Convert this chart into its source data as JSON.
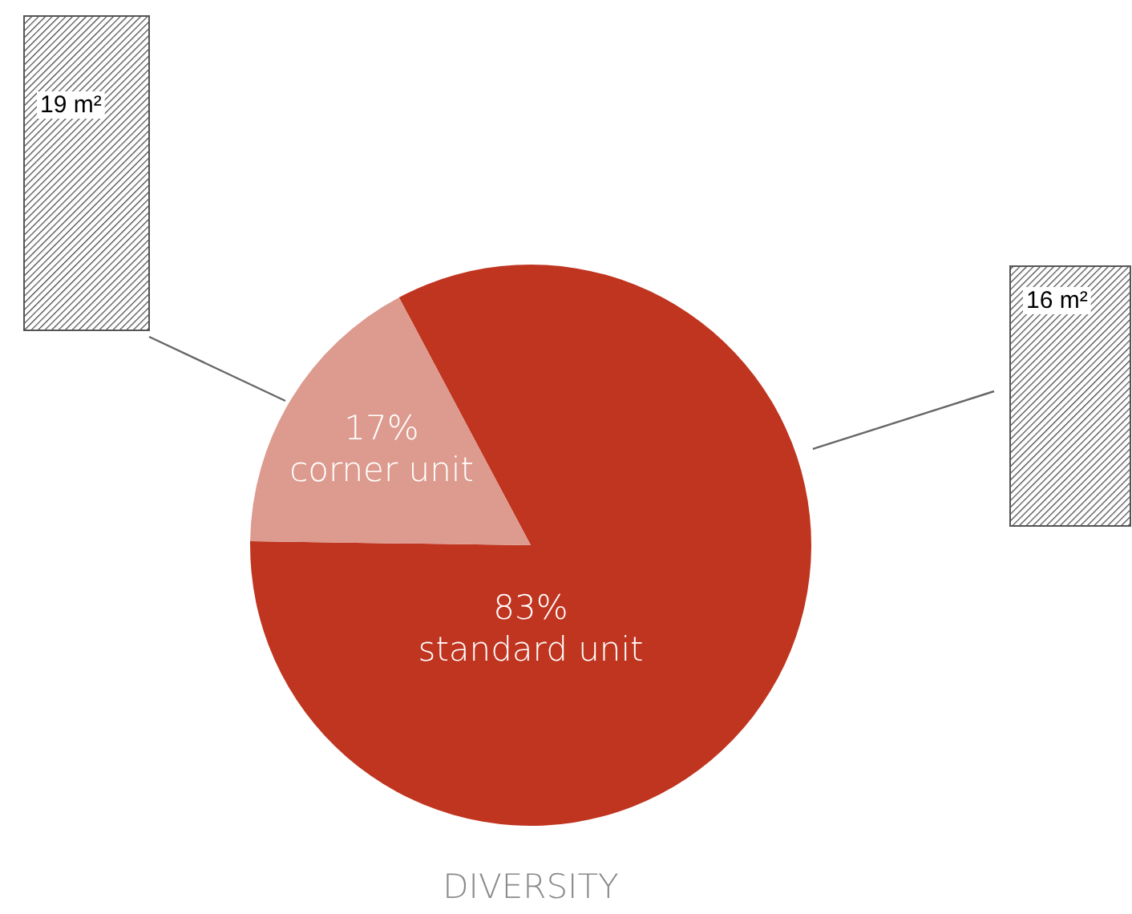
{
  "chart_data": {
    "type": "pie",
    "title": "DIVERSITY",
    "categories": [
      "corner unit",
      "standard unit"
    ],
    "values": [
      17,
      83
    ],
    "colors": [
      "#dd9a8e",
      "#c03520"
    ],
    "value_labels": [
      "17%",
      "83%"
    ],
    "annotations": [
      "19 m²",
      "16 m²"
    ]
  }
}
